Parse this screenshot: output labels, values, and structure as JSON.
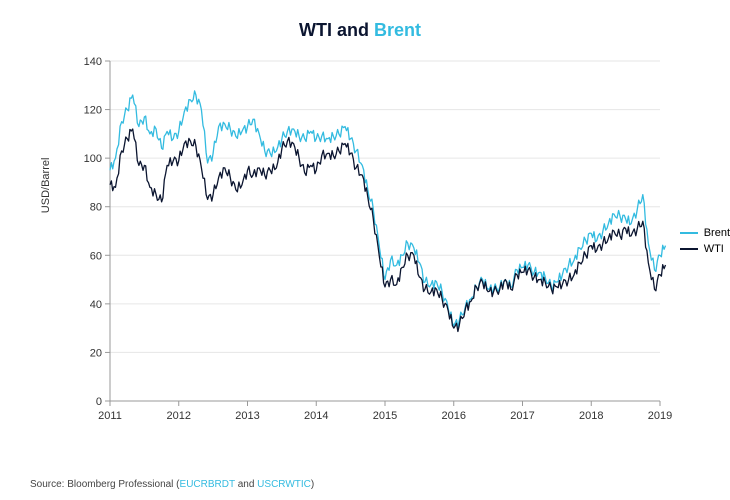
{
  "title": {
    "part1": "WTI and ",
    "part2": "Brent",
    "fontsize": 18
  },
  "chart": {
    "type": "line",
    "ylabel": "USD/Barrel",
    "label_fontsize": 11,
    "tick_fontsize": 11,
    "xlim": [
      2011,
      2019
    ],
    "ylim": [
      0,
      140
    ],
    "xticks": [
      2011,
      2012,
      2013,
      2014,
      2015,
      2016,
      2017,
      2018,
      2019
    ],
    "yticks": [
      0,
      20,
      40,
      60,
      80,
      100,
      120,
      140
    ],
    "grid_color": "#e6e6e6",
    "axis_color": "#999999",
    "background_color": "#ffffff",
    "line_width": 1.3,
    "legend_position": "right-middle",
    "series": [
      {
        "name": "Brent",
        "color": "#33bbe0",
        "values": [
          [
            2011.0,
            95
          ],
          [
            2011.08,
            100
          ],
          [
            2011.17,
            115
          ],
          [
            2011.25,
            120
          ],
          [
            2011.33,
            126
          ],
          [
            2011.42,
            113
          ],
          [
            2011.5,
            117
          ],
          [
            2011.58,
            110
          ],
          [
            2011.67,
            112
          ],
          [
            2011.75,
            104
          ],
          [
            2011.83,
            111
          ],
          [
            2011.92,
            108
          ],
          [
            2012.0,
            111
          ],
          [
            2012.08,
            119
          ],
          [
            2012.17,
            124
          ],
          [
            2012.25,
            126
          ],
          [
            2012.33,
            120
          ],
          [
            2012.42,
            98
          ],
          [
            2012.5,
            102
          ],
          [
            2012.58,
            113
          ],
          [
            2012.67,
            114
          ],
          [
            2012.75,
            112
          ],
          [
            2012.83,
            109
          ],
          [
            2012.92,
            111
          ],
          [
            2013.0,
            113
          ],
          [
            2013.08,
            116
          ],
          [
            2013.17,
            110
          ],
          [
            2013.25,
            103
          ],
          [
            2013.33,
            102
          ],
          [
            2013.42,
            103
          ],
          [
            2013.5,
            108
          ],
          [
            2013.58,
            111
          ],
          [
            2013.67,
            112
          ],
          [
            2013.75,
            109
          ],
          [
            2013.83,
            108
          ],
          [
            2013.92,
            111
          ],
          [
            2014.0,
            108
          ],
          [
            2014.08,
            109
          ],
          [
            2014.17,
            108
          ],
          [
            2014.25,
            109
          ],
          [
            2014.33,
            110
          ],
          [
            2014.42,
            113
          ],
          [
            2014.5,
            108
          ],
          [
            2014.58,
            103
          ],
          [
            2014.67,
            97
          ],
          [
            2014.75,
            87
          ],
          [
            2014.83,
            79
          ],
          [
            2014.92,
            63
          ],
          [
            2015.0,
            50
          ],
          [
            2015.08,
            58
          ],
          [
            2015.17,
            56
          ],
          [
            2015.25,
            60
          ],
          [
            2015.33,
            65
          ],
          [
            2015.42,
            63
          ],
          [
            2015.5,
            57
          ],
          [
            2015.58,
            49
          ],
          [
            2015.67,
            48
          ],
          [
            2015.75,
            49
          ],
          [
            2015.83,
            45
          ],
          [
            2015.92,
            38
          ],
          [
            2016.0,
            31
          ],
          [
            2016.08,
            33
          ],
          [
            2016.17,
            39
          ],
          [
            2016.25,
            42
          ],
          [
            2016.33,
            47
          ],
          [
            2016.42,
            50
          ],
          [
            2016.5,
            46
          ],
          [
            2016.58,
            46
          ],
          [
            2016.67,
            47
          ],
          [
            2016.75,
            50
          ],
          [
            2016.83,
            47
          ],
          [
            2016.92,
            54
          ],
          [
            2017.0,
            55
          ],
          [
            2017.08,
            56
          ],
          [
            2017.17,
            53
          ],
          [
            2017.25,
            53
          ],
          [
            2017.33,
            51
          ],
          [
            2017.42,
            47
          ],
          [
            2017.5,
            49
          ],
          [
            2017.58,
            52
          ],
          [
            2017.67,
            56
          ],
          [
            2017.75,
            58
          ],
          [
            2017.83,
            63
          ],
          [
            2017.92,
            66
          ],
          [
            2018.0,
            69
          ],
          [
            2018.08,
            66
          ],
          [
            2018.17,
            70
          ],
          [
            2018.25,
            73
          ],
          [
            2018.33,
            77
          ],
          [
            2018.42,
            76
          ],
          [
            2018.5,
            75
          ],
          [
            2018.58,
            73
          ],
          [
            2018.67,
            79
          ],
          [
            2018.75,
            85
          ],
          [
            2018.83,
            65
          ],
          [
            2018.92,
            54
          ],
          [
            2019.0,
            60
          ],
          [
            2019.08,
            64
          ]
        ]
      },
      {
        "name": "WTI",
        "color": "#0b1530",
        "values": [
          [
            2011.0,
            89
          ],
          [
            2011.08,
            88
          ],
          [
            2011.17,
            103
          ],
          [
            2011.25,
            108
          ],
          [
            2011.33,
            112
          ],
          [
            2011.42,
            97
          ],
          [
            2011.5,
            97
          ],
          [
            2011.58,
            88
          ],
          [
            2011.67,
            85
          ],
          [
            2011.75,
            82
          ],
          [
            2011.83,
            97
          ],
          [
            2011.92,
            99
          ],
          [
            2012.0,
            99
          ],
          [
            2012.08,
            106
          ],
          [
            2012.17,
            107
          ],
          [
            2012.25,
            105
          ],
          [
            2012.33,
            96
          ],
          [
            2012.42,
            83
          ],
          [
            2012.5,
            85
          ],
          [
            2012.58,
            92
          ],
          [
            2012.67,
            96
          ],
          [
            2012.75,
            92
          ],
          [
            2012.83,
            87
          ],
          [
            2012.92,
            89
          ],
          [
            2013.0,
            95
          ],
          [
            2013.08,
            93
          ],
          [
            2013.17,
            96
          ],
          [
            2013.25,
            93
          ],
          [
            2013.33,
            95
          ],
          [
            2013.42,
            96
          ],
          [
            2013.5,
            104
          ],
          [
            2013.58,
            107
          ],
          [
            2013.67,
            106
          ],
          [
            2013.75,
            100
          ],
          [
            2013.83,
            94
          ],
          [
            2013.92,
            97
          ],
          [
            2014.0,
            95
          ],
          [
            2014.08,
            101
          ],
          [
            2014.17,
            102
          ],
          [
            2014.25,
            101
          ],
          [
            2014.33,
            103
          ],
          [
            2014.42,
            106
          ],
          [
            2014.5,
            102
          ],
          [
            2014.58,
            96
          ],
          [
            2014.67,
            93
          ],
          [
            2014.75,
            84
          ],
          [
            2014.83,
            75
          ],
          [
            2014.92,
            59
          ],
          [
            2015.0,
            47
          ],
          [
            2015.08,
            50
          ],
          [
            2015.17,
            48
          ],
          [
            2015.25,
            55
          ],
          [
            2015.33,
            60
          ],
          [
            2015.42,
            60
          ],
          [
            2015.5,
            51
          ],
          [
            2015.58,
            46
          ],
          [
            2015.67,
            45
          ],
          [
            2015.75,
            46
          ],
          [
            2015.83,
            42
          ],
          [
            2015.92,
            37
          ],
          [
            2016.0,
            30
          ],
          [
            2016.08,
            31
          ],
          [
            2016.17,
            38
          ],
          [
            2016.25,
            41
          ],
          [
            2016.33,
            47
          ],
          [
            2016.42,
            49
          ],
          [
            2016.5,
            45
          ],
          [
            2016.58,
            45
          ],
          [
            2016.67,
            46
          ],
          [
            2016.75,
            50
          ],
          [
            2016.83,
            46
          ],
          [
            2016.92,
            52
          ],
          [
            2017.0,
            53
          ],
          [
            2017.08,
            54
          ],
          [
            2017.17,
            51
          ],
          [
            2017.25,
            50
          ],
          [
            2017.33,
            49
          ],
          [
            2017.42,
            46
          ],
          [
            2017.5,
            47
          ],
          [
            2017.58,
            48
          ],
          [
            2017.67,
            50
          ],
          [
            2017.75,
            52
          ],
          [
            2017.83,
            57
          ],
          [
            2017.92,
            60
          ],
          [
            2018.0,
            64
          ],
          [
            2018.08,
            62
          ],
          [
            2018.17,
            65
          ],
          [
            2018.25,
            67
          ],
          [
            2018.33,
            70
          ],
          [
            2018.42,
            68
          ],
          [
            2018.5,
            71
          ],
          [
            2018.58,
            68
          ],
          [
            2018.67,
            71
          ],
          [
            2018.75,
            74
          ],
          [
            2018.83,
            57
          ],
          [
            2018.92,
            46
          ],
          [
            2019.0,
            52
          ],
          [
            2019.08,
            56
          ]
        ]
      }
    ]
  },
  "source": {
    "prefix": "Source: Bloomberg Professional (",
    "highlight": "EUCRBRDT",
    "middle": " and ",
    "highlight2": "USCRWTIC",
    "suffix": ")"
  }
}
